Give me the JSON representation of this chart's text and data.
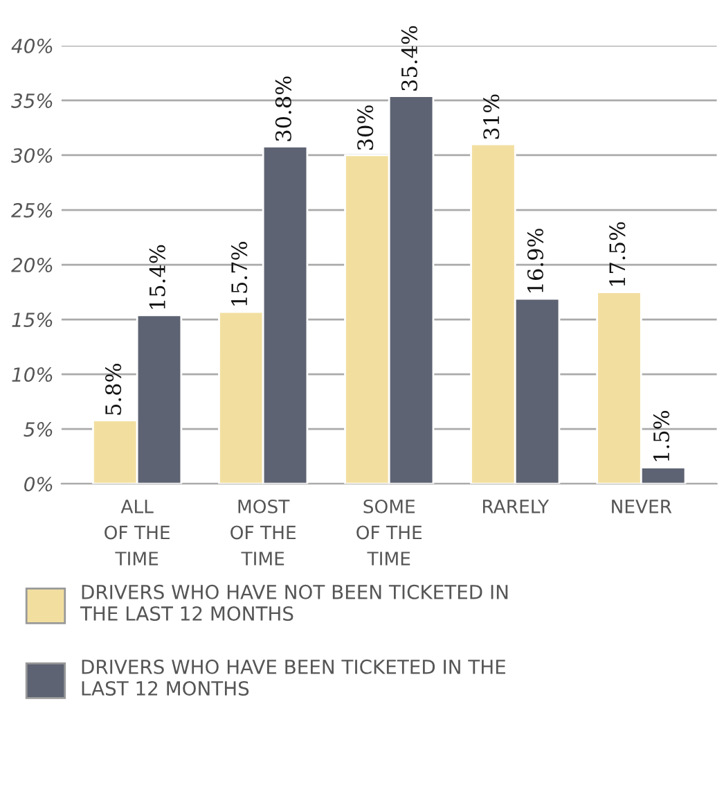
{
  "chart_data": {
    "type": "bar",
    "categories": [
      "ALL\nOF THE\nTIME",
      "MOST\nOF THE\nTIME",
      "SOME\nOF THE\nTIME",
      "RARELY",
      "NEVER"
    ],
    "series": [
      {
        "name": "DRIVERS WHO HAVE NOT BEEN TICKETED IN\nTHE LAST 12 MONTHS",
        "color": "#f2dfa0",
        "values": [
          5.8,
          15.7,
          30,
          31,
          17.5
        ],
        "value_labels": [
          "5.8%",
          "15.7%",
          "30%",
          "31%",
          "17.5%"
        ]
      },
      {
        "name": "DRIVERS WHO HAVE BEEN TICKETED IN THE\nLAST 12 MONTHS",
        "color": "#5d6372",
        "values": [
          15.4,
          30.8,
          35.4,
          16.9,
          1.5
        ],
        "value_labels": [
          "15.4%",
          "30.8%",
          "35.4%",
          "16.9%",
          "1.5%"
        ]
      }
    ],
    "ylim": [
      0,
      40
    ],
    "yticks": [
      {
        "value": 0,
        "label": "0%"
      },
      {
        "value": 5,
        "label": "5%"
      },
      {
        "value": 10,
        "label": "10%"
      },
      {
        "value": 15,
        "label": "15%"
      },
      {
        "value": 20,
        "label": "20%"
      },
      {
        "value": 25,
        "label": "25%"
      },
      {
        "value": 30,
        "label": "30%"
      },
      {
        "value": 35,
        "label": "35%"
      },
      {
        "value": 40,
        "label": "40%"
      }
    ],
    "grid": "y",
    "legend": "bottom"
  }
}
